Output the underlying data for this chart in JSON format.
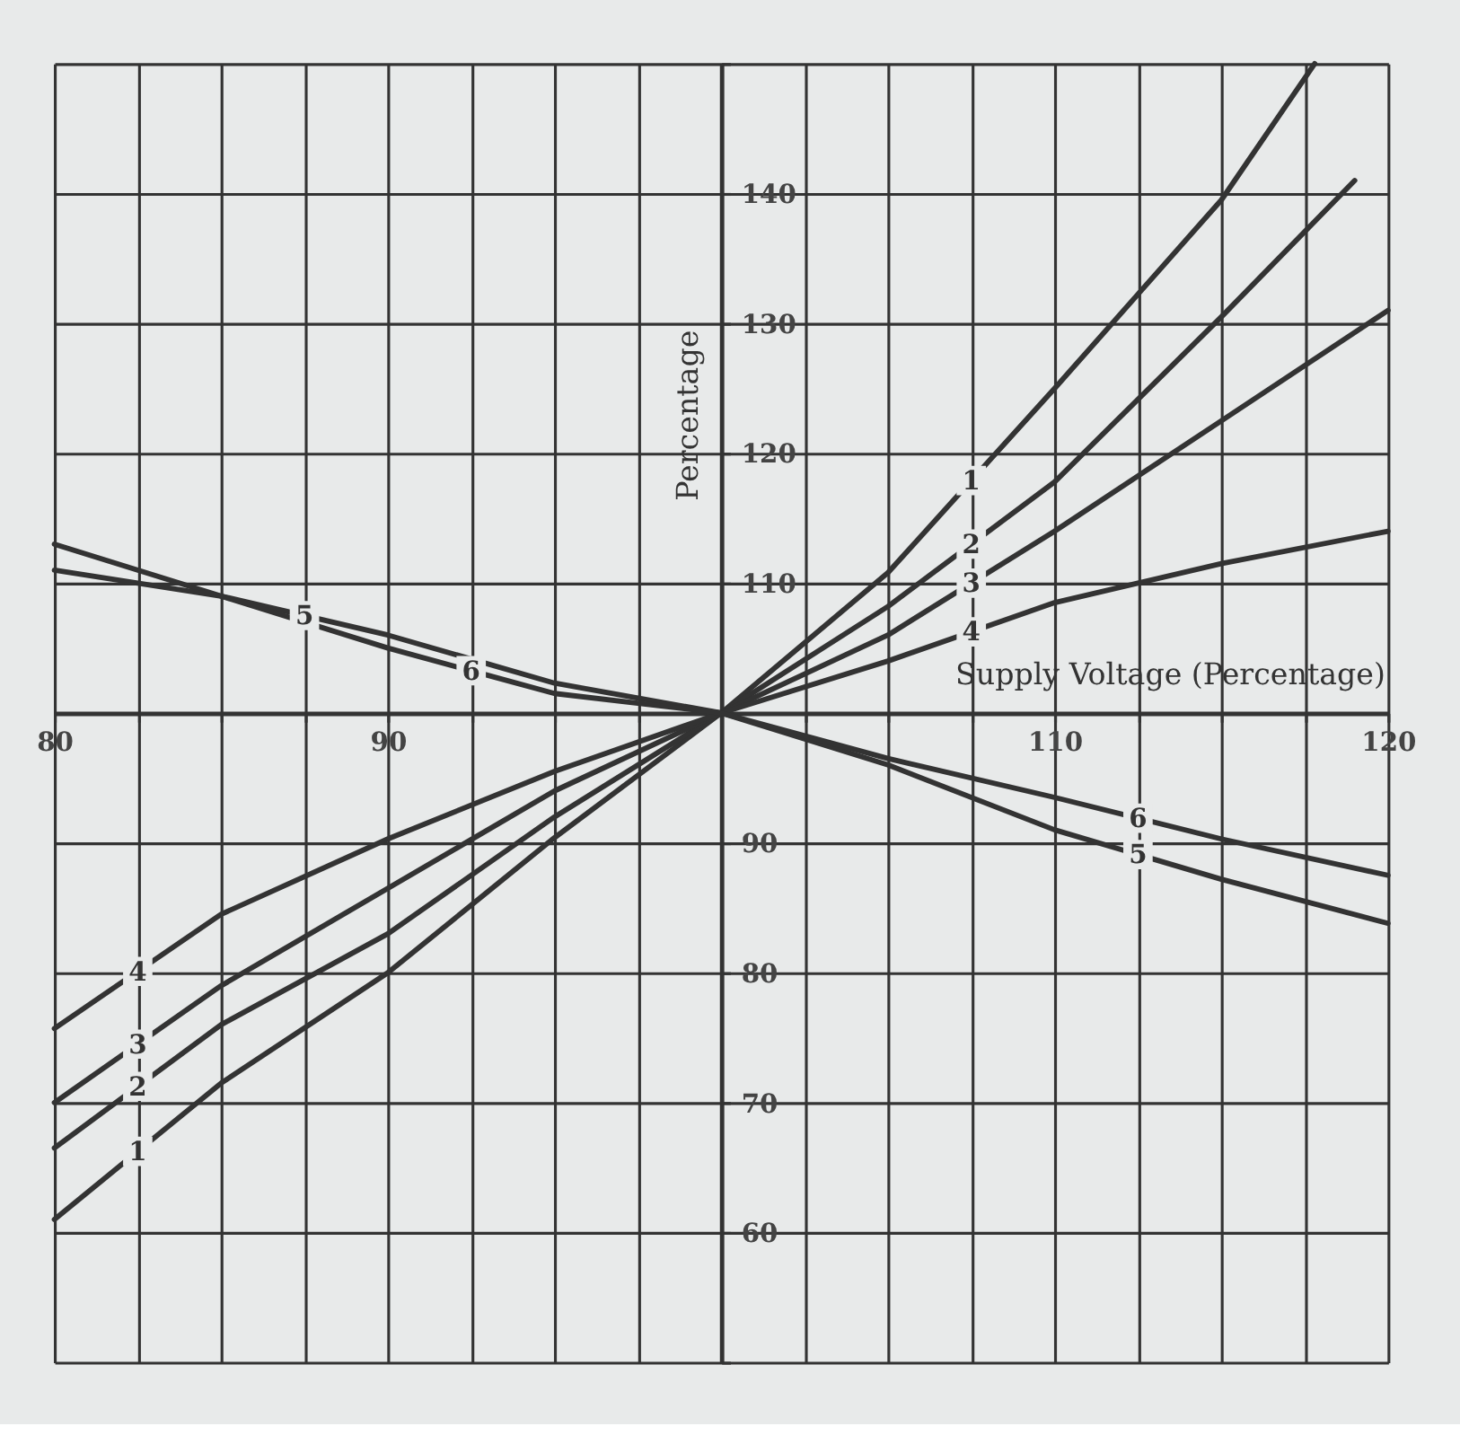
{
  "chart_data": {
    "type": "line",
    "xlabel": "Supply Voltage (Percentage)",
    "ylabel": "Percentage",
    "x": [
      80,
      85,
      90,
      95,
      100,
      105,
      110,
      115,
      120
    ],
    "xlim": [
      80,
      120
    ],
    "ylim": [
      50,
      150
    ],
    "xticks": [
      80,
      {
        "value": 82.5,
        "label": null
      },
      {
        "value": 85,
        "label": null
      },
      {
        "value": 87.5,
        "label": null
      },
      90,
      {
        "value": 92.5,
        "label": null
      },
      {
        "value": 95,
        "label": null
      },
      {
        "value": 97.5,
        "label": null
      },
      {
        "value": 100,
        "label": null
      },
      {
        "value": 102.5,
        "label": null
      },
      {
        "value": 105,
        "label": null
      },
      {
        "value": 107.5,
        "label": null
      },
      110,
      {
        "value": 112.5,
        "label": null
      },
      {
        "value": 115,
        "label": null
      },
      {
        "value": 117.5,
        "label": null
      },
      120
    ],
    "yticks": [
      {
        "value": 50,
        "label": null
      },
      60,
      70,
      80,
      90,
      {
        "value": 100,
        "label": null
      },
      110,
      120,
      130,
      140,
      {
        "value": 150,
        "label": null
      }
    ],
    "grid": true,
    "legend": false,
    "marker": "none",
    "line_style": "solid",
    "series": [
      {
        "name": "1",
        "color": "#333333",
        "x": [
          80,
          85,
          90,
          95,
          100,
          105,
          110,
          115,
          117.8
        ],
        "values": [
          61,
          71.5,
          80,
          90.4,
          100,
          110.8,
          125,
          139.5,
          150
        ]
      },
      {
        "name": "2",
        "color": "#333333",
        "x": [
          80,
          85,
          90,
          95,
          100,
          105,
          110,
          115,
          119
        ],
        "values": [
          66.5,
          76,
          83,
          92,
          100,
          108.2,
          117.8,
          130.5,
          141
        ]
      },
      {
        "name": "3",
        "color": "#333333",
        "values": [
          70,
          79,
          86.5,
          94,
          100,
          106,
          114,
          122.5,
          131
        ]
      },
      {
        "name": "4",
        "color": "#333333",
        "values": [
          75.7,
          84.5,
          90.3,
          95.5,
          100,
          104,
          108.5,
          111.5,
          114
        ]
      },
      {
        "name": "5",
        "color": "#333333",
        "values": [
          113,
          109,
          106,
          102.3,
          100,
          96,
          91,
          87.2,
          83.8
        ]
      },
      {
        "name": "6",
        "color": "#333333",
        "values": [
          111,
          109,
          105,
          101.5,
          100,
          96.5,
          93.5,
          90.3,
          87.5
        ]
      }
    ]
  }
}
